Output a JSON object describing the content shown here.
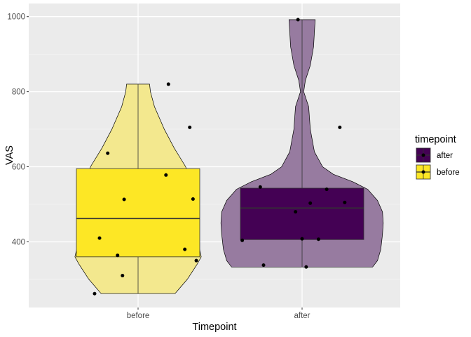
{
  "chart_data": {
    "type": "violin",
    "title": "",
    "xlabel": "Timepoint",
    "ylabel": "VAS",
    "categories": [
      "before",
      "after"
    ],
    "ylim": [
      225,
      1035
    ],
    "yticks": [
      400,
      600,
      800,
      1000
    ],
    "grid": true,
    "legend": {
      "title": "timepoint",
      "position": "right",
      "entries": [
        {
          "label": "after",
          "color": "#440154"
        },
        {
          "label": "before",
          "color": "#FDE725"
        }
      ]
    },
    "series": [
      {
        "name": "before",
        "fill": "#FDE725",
        "violin_fill": "#F3E88E",
        "box": {
          "min": 262,
          "q1": 360,
          "median": 462,
          "q3": 595,
          "max": 820
        },
        "violin_profile": [
          [
            262,
            0.45
          ],
          [
            300,
            0.6
          ],
          [
            340,
            0.72
          ],
          [
            360,
            0.77
          ],
          [
            380,
            0.75
          ],
          [
            420,
            0.72
          ],
          [
            470,
            0.7
          ],
          [
            530,
            0.68
          ],
          [
            600,
            0.58
          ],
          [
            650,
            0.44
          ],
          [
            700,
            0.32
          ],
          [
            760,
            0.2
          ],
          [
            800,
            0.15
          ],
          [
            820,
            0.14
          ]
        ],
        "points": [
          {
            "x": -0.53,
            "y": 262
          },
          {
            "x": -0.19,
            "y": 310
          },
          {
            "x": 0.71,
            "y": 350
          },
          {
            "x": -0.25,
            "y": 364
          },
          {
            "x": 0.57,
            "y": 380
          },
          {
            "x": -0.47,
            "y": 410
          },
          {
            "x": -0.17,
            "y": 513
          },
          {
            "x": 0.67,
            "y": 514
          },
          {
            "x": 0.34,
            "y": 578
          },
          {
            "x": -0.37,
            "y": 636
          },
          {
            "x": 0.63,
            "y": 705
          },
          {
            "x": 0.37,
            "y": 820
          }
        ]
      },
      {
        "name": "after",
        "fill": "#440154",
        "violin_fill": "#977BA0",
        "box": {
          "min": 333,
          "q1": 406,
          "median": 490,
          "q3": 543,
          "max": 992
        },
        "violin_profile": [
          [
            333,
            0.86
          ],
          [
            350,
            0.92
          ],
          [
            380,
            0.96
          ],
          [
            420,
            0.98
          ],
          [
            450,
            0.99
          ],
          [
            480,
            0.98
          ],
          [
            510,
            0.92
          ],
          [
            540,
            0.8
          ],
          [
            560,
            0.62
          ],
          [
            580,
            0.38
          ],
          [
            600,
            0.25
          ],
          [
            640,
            0.15
          ],
          [
            700,
            0.1
          ],
          [
            760,
            0.08
          ],
          [
            800,
            0.02
          ],
          [
            830,
            0.04
          ],
          [
            870,
            0.1
          ],
          [
            920,
            0.14
          ],
          [
            960,
            0.15
          ],
          [
            992,
            0.16
          ]
        ],
        "points": [
          {
            "x": -0.73,
            "y": 404
          },
          {
            "x": -0.51,
            "y": 546
          },
          {
            "x": -0.47,
            "y": 338
          },
          {
            "x": -0.05,
            "y": 992
          },
          {
            "x": -0.08,
            "y": 480
          },
          {
            "x": 0.0,
            "y": 408
          },
          {
            "x": 0.05,
            "y": 333
          },
          {
            "x": 0.1,
            "y": 503
          },
          {
            "x": 0.2,
            "y": 407
          },
          {
            "x": 0.3,
            "y": 540
          },
          {
            "x": 0.46,
            "y": 705
          },
          {
            "x": 0.52,
            "y": 505
          }
        ]
      }
    ]
  }
}
